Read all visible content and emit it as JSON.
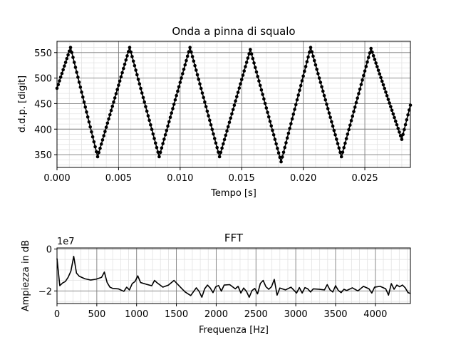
{
  "chart_data": [
    {
      "type": "line",
      "title": "Onda a pinna di squalo",
      "xlabel": "Tempo [s]",
      "ylabel": "d.d.p. [digit]",
      "xlim": [
        0.0,
        0.0287
      ],
      "ylim": [
        325,
        572
      ],
      "grid": "major and minor",
      "marker": "dot",
      "xticks": [
        0.0,
        0.005,
        0.01,
        0.015,
        0.02,
        0.025
      ],
      "xtick_labels": [
        "0.000",
        "0.005",
        "0.010",
        "0.015",
        "0.020",
        "0.025"
      ],
      "yticks": [
        350,
        400,
        450,
        500,
        550
      ],
      "ytick_labels": [
        "350",
        "400",
        "450",
        "500",
        "550"
      ],
      "color": "#000000",
      "series": [
        {
          "x": [
            0.0,
            0.0011,
            0.0033,
            0.0059,
            0.0083,
            0.0108,
            0.0132,
            0.0157,
            0.0182,
            0.0206,
            0.0231,
            0.0255,
            0.028,
            0.0287
          ],
          "y": [
            480,
            560,
            346,
            560,
            346,
            560,
            346,
            556,
            336,
            560,
            346,
            558,
            380,
            447
          ]
        }
      ]
    },
    {
      "type": "line",
      "title": "FFT",
      "xlabel": "Frequenza [Hz]",
      "ylabel": "Ampiezza in dB",
      "scale_label": "1e7",
      "xlim": [
        0,
        4440
      ],
      "ylim": [
        -2.6,
        0.05
      ],
      "grid": "major and minor",
      "xticks": [
        0,
        500,
        1000,
        1500,
        2000,
        2500,
        3000,
        3500,
        4000
      ],
      "xtick_labels": [
        "0",
        "500",
        "1000",
        "1500",
        "2000",
        "2500",
        "3000",
        "3500",
        "4000"
      ],
      "yticks": [
        0,
        -2
      ],
      "ytick_labels": [
        "0",
        "−2"
      ],
      "color": "#000000",
      "series": [
        {
          "x": [
            0,
            35,
            70,
            105,
            140,
            175,
            210,
            245,
            280,
            350,
            420,
            490,
            560,
            595,
            630,
            665,
            700,
            770,
            840,
            875,
            910,
            945,
            980,
            1015,
            1050,
            1120,
            1190,
            1225,
            1260,
            1330,
            1400,
            1470,
            1540,
            1610,
            1680,
            1750,
            1785,
            1820,
            1855,
            1890,
            1925,
            1960,
            1995,
            2030,
            2065,
            2100,
            2170,
            2240,
            2275,
            2310,
            2345,
            2380,
            2415,
            2450,
            2485,
            2520,
            2555,
            2590,
            2625,
            2660,
            2695,
            2730,
            2765,
            2800,
            2870,
            2940,
            3010,
            3045,
            3080,
            3115,
            3150,
            3185,
            3220,
            3290,
            3360,
            3395,
            3430,
            3465,
            3500,
            3535,
            3570,
            3605,
            3640,
            3710,
            3780,
            3850,
            3920,
            3955,
            3990,
            4060,
            4130,
            4165,
            4200,
            4235,
            4270,
            4305,
            4340,
            4375,
            4410,
            4440
          ],
          "y": [
            -0.45,
            -1.75,
            -1.62,
            -1.55,
            -1.35,
            -1.05,
            -0.35,
            -1.15,
            -1.3,
            -1.42,
            -1.48,
            -1.44,
            -1.35,
            -1.1,
            -1.6,
            -1.82,
            -1.88,
            -1.9,
            -2.02,
            -1.82,
            -1.95,
            -1.65,
            -1.55,
            -1.28,
            -1.6,
            -1.68,
            -1.75,
            -1.5,
            -1.62,
            -1.82,
            -1.72,
            -1.5,
            -1.78,
            -2.05,
            -2.22,
            -1.85,
            -2.02,
            -2.3,
            -1.9,
            -1.72,
            -1.86,
            -2.08,
            -1.8,
            -1.74,
            -2.01,
            -1.72,
            -1.7,
            -1.9,
            -1.78,
            -2.1,
            -1.86,
            -2.02,
            -2.3,
            -1.98,
            -1.88,
            -2.14,
            -1.64,
            -1.5,
            -1.8,
            -1.92,
            -1.8,
            -1.45,
            -2.2,
            -1.86,
            -1.95,
            -1.82,
            -2.1,
            -1.84,
            -2.1,
            -1.84,
            -1.9,
            -2.05,
            -1.9,
            -1.92,
            -1.95,
            -1.7,
            -1.95,
            -2.05,
            -1.75,
            -1.98,
            -2.08,
            -1.92,
            -1.98,
            -1.85,
            -2.0,
            -1.78,
            -1.9,
            -2.1,
            -1.82,
            -1.78,
            -1.9,
            -2.2,
            -1.65,
            -1.92,
            -1.72,
            -1.8,
            -1.72,
            -1.85,
            -2.08,
            -2.12
          ]
        }
      ]
    }
  ]
}
